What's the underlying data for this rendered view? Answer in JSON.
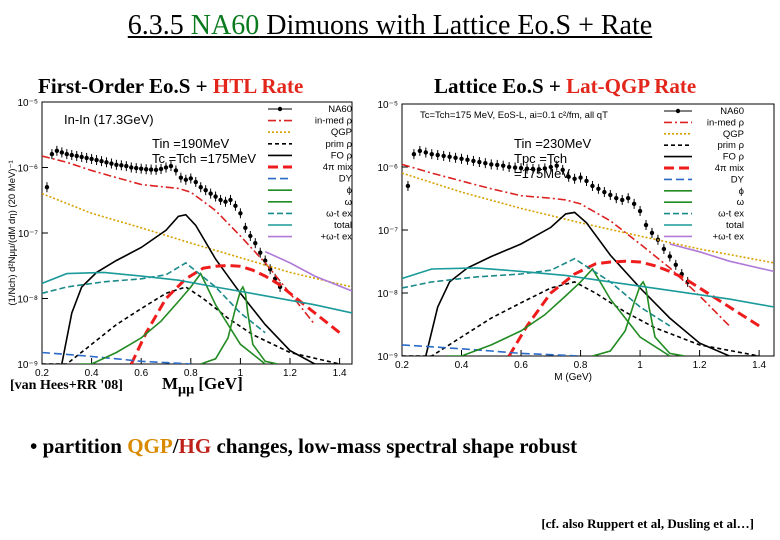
{
  "slide": {
    "title_pre": "6.3.5 ",
    "title_accent": "NA60",
    "title_post": " Dimuons with Lattice Eo.S + Rate",
    "left_subtitle_pre": "First-Order Eo.S + ",
    "left_subtitle_red": "HTL Rate",
    "right_subtitle_pre": "Lattice Eo.S + ",
    "right_subtitle_red": "Lat-QGP Rate",
    "reference": "[van Hees+RR '08]",
    "xaxis_label": "M",
    "xaxis_sub": "μμ",
    "xaxis_unit": " [GeV]",
    "bullet_pre": "• partition ",
    "bullet_qgp": "QGP",
    "bullet_sep": "/",
    "bullet_hg": "HG",
    "bullet_post": " changes,  low-mass spectral shape robust",
    "citation": "[cf. also Ruppert et al, Dusling et al…]"
  },
  "chart_data": [
    {
      "type": "line",
      "panel": "left",
      "title": "In-In (17.3GeV)",
      "ylabel": "(1/Nch) d²Nμμ/(dM dη) (20 MeV)⁻¹",
      "xlabel": "",
      "xlim": [
        0.2,
        1.45
      ],
      "ylim": [
        1e-09,
        1e-05
      ],
      "yscale": "log",
      "xticks": [
        "0.2",
        "0.4",
        "0.6",
        "0.8",
        "1",
        "1.2",
        "1.4"
      ],
      "yticks": [
        "10⁻⁵",
        "10⁻⁶",
        "10⁻⁷",
        "10⁻⁸",
        "10⁻⁹"
      ],
      "annotations": [
        "Tin =190MeV",
        "Tc =Tch =175MeV"
      ],
      "legend": [
        "NA60",
        "in-med ρ",
        "QGP",
        "prim ρ",
        "FO ρ",
        "4π mix",
        "DY",
        "ϕ",
        "ω",
        "ω-t ex",
        "total",
        "+ω-t ex"
      ],
      "series": [
        {
          "name": "NA60",
          "color": "#000000",
          "x": [
            0.22,
            0.24,
            0.26,
            0.28,
            0.3,
            0.32,
            0.34,
            0.36,
            0.38,
            0.4,
            0.42,
            0.44,
            0.46,
            0.48,
            0.5,
            0.52,
            0.54,
            0.56,
            0.58,
            0.6,
            0.62,
            0.64,
            0.66,
            0.68,
            0.7,
            0.72,
            0.74,
            0.76,
            0.78,
            0.8,
            0.82,
            0.84,
            0.86,
            0.88,
            0.9,
            0.92,
            0.94,
            0.96,
            0.98,
            1.0,
            1.02,
            1.04,
            1.06,
            1.08,
            1.1,
            1.12,
            1.14,
            1.16
          ],
          "y": [
            5e-07,
            1.6e-06,
            1.8e-06,
            1.7e-06,
            1.6e-06,
            1.55e-06,
            1.5e-06,
            1.45e-06,
            1.4e-06,
            1.35e-06,
            1.3e-06,
            1.25e-06,
            1.2e-06,
            1.15e-06,
            1.1e-06,
            1.08e-06,
            1.05e-06,
            1e-06,
            9.8e-07,
            9.6e-07,
            9.4e-07,
            9.3e-07,
            9.2e-07,
            9.5e-07,
            1e-06,
            1.05e-06,
            9e-07,
            7e-07,
            6.5e-07,
            6.8e-07,
            6e-07,
            5e-07,
            4.5e-07,
            4e-07,
            3.6e-07,
            3.2e-07,
            3e-07,
            3.2e-07,
            2.6e-07,
            2e-07,
            1.2e-07,
            9e-08,
            7e-08,
            5e-08,
            3.8e-08,
            2.8e-08,
            2e-08,
            1.5e-08
          ]
        },
        {
          "name": "in-med ρ",
          "color": "#dd2222",
          "dash": "8 3 2 3",
          "x": [
            0.2,
            0.3,
            0.4,
            0.5,
            0.6,
            0.7,
            0.75,
            0.8,
            0.9,
            1.0,
            1.1,
            1.2,
            1.3
          ],
          "y": [
            1.5e-06,
            1.2e-06,
            9e-07,
            7e-07,
            5.5e-07,
            5e-07,
            4.8e-07,
            4.2e-07,
            2.2e-07,
            9e-08,
            3.5e-08,
            1.2e-08,
            4e-09
          ]
        },
        {
          "name": "QGP",
          "color": "#d8a000",
          "dash": "2 2",
          "x": [
            0.2,
            0.4,
            0.6,
            0.8,
            1.0,
            1.2,
            1.45
          ],
          "y": [
            4e-07,
            2e-07,
            1.2e-07,
            7e-08,
            4.2e-08,
            2.5e-08,
            1.5e-08
          ]
        },
        {
          "name": "prim ρ",
          "color": "#000000",
          "dash": "4 3",
          "x": [
            0.2,
            0.3,
            0.4,
            0.5,
            0.6,
            0.7,
            0.78,
            0.85,
            0.95,
            1.05,
            1.2,
            1.4
          ],
          "y": [
            1e-09,
            1e-09,
            2e-09,
            4e-09,
            7e-09,
            1.2e-08,
            1.5e-08,
            1e-08,
            5e-09,
            2.8e-09,
            1.5e-09,
            1e-09
          ]
        },
        {
          "name": "FO ρ",
          "color": "#000000",
          "x": [
            0.28,
            0.32,
            0.36,
            0.42,
            0.5,
            0.6,
            0.7,
            0.75,
            0.78,
            0.82,
            0.9,
            1.0,
            1.1,
            1.2,
            1.3,
            1.4
          ],
          "y": [
            1e-09,
            6e-09,
            1.5e-08,
            2.5e-08,
            3.8e-08,
            6e-08,
            1.1e-07,
            1.8e-07,
            1.9e-07,
            1.3e-07,
            4e-08,
            1.2e-08,
            4e-09,
            1.6e-09,
            1e-09,
            1e-09
          ]
        },
        {
          "name": "4π mix",
          "color": "#ee1c1c",
          "dash": "10 5",
          "width": 3,
          "x": [
            0.56,
            0.62,
            0.7,
            0.78,
            0.85,
            0.9,
            0.95,
            1.0,
            1.05,
            1.1,
            1.15,
            1.2,
            1.3,
            1.4
          ],
          "y": [
            1e-09,
            3e-09,
            1e-08,
            2e-08,
            2.9e-08,
            3.1e-08,
            3.2e-08,
            3.1e-08,
            2.7e-08,
            2.2e-08,
            1.7e-08,
            1.2e-08,
            6e-09,
            3e-09
          ]
        },
        {
          "name": "DY",
          "color": "#2b6bc8",
          "dash": "8 4",
          "x": [
            0.2,
            0.3,
            0.4,
            0.5,
            0.6,
            0.7,
            0.8
          ],
          "y": [
            1.5e-09,
            1.4e-09,
            1.3e-09,
            1.2e-09,
            1.1e-09,
            1.05e-09,
            1e-09
          ]
        },
        {
          "name": "ϕ",
          "color": "#228b22",
          "x": [
            0.84,
            0.9,
            0.95,
            0.98,
            1.0,
            1.01,
            1.02,
            1.03,
            1.05,
            1.1,
            1.15
          ],
          "y": [
            1e-09,
            1.2e-09,
            2.5e-09,
            7e-09,
            1.3e-08,
            1.5e-08,
            1.2e-08,
            6e-09,
            2e-09,
            1.1e-09,
            1e-09
          ]
        },
        {
          "name": "ω",
          "color": "#228b22",
          "x": [
            0.35,
            0.4,
            0.5,
            0.6,
            0.68,
            0.75,
            0.8,
            0.84,
            0.9,
            1.0,
            1.1
          ],
          "y": [
            1e-09,
            1e-09,
            1.5e-09,
            2.5e-09,
            4.5e-09,
            9e-09,
            1.5e-08,
            2.4e-08,
            8e-09,
            2e-09,
            1e-09
          ]
        },
        {
          "name": "ω-t ex",
          "color": "#1a8a8a",
          "dash": "6 3",
          "x": [
            0.2,
            0.3,
            0.45,
            0.6,
            0.7,
            0.78,
            0.9,
            1.0,
            1.1
          ],
          "y": [
            1.2e-08,
            1.5e-08,
            1.8e-08,
            2e-08,
            2.3e-08,
            3.5e-08,
            1.5e-08,
            6e-09,
            3e-09
          ]
        },
        {
          "name": "total",
          "color": "#1a9a9a",
          "x": [
            0.2,
            0.3,
            0.45,
            0.6,
            0.75,
            0.9,
            1.1,
            1.3,
            1.45
          ],
          "y": [
            1.7e-08,
            2.4e-08,
            2.5e-08,
            2.2e-08,
            1.9e-08,
            1.5e-08,
            1.1e-08,
            8e-09,
            6e-09
          ]
        },
        {
          "name": "+ω-t ex",
          "color": "#b07ad8",
          "x": [
            1.1,
            1.2,
            1.3,
            1.45
          ],
          "y": [
            5.2e-08,
            3.5e-08,
            2.2e-08,
            1.3e-08
          ]
        }
      ]
    },
    {
      "type": "line",
      "panel": "right",
      "title": "Tc=Tch=175 MeV, EoS-L, ai=0.1 c²/fm, all qT",
      "xlabel": "M (GeV)",
      "xlim": [
        0.2,
        1.45
      ],
      "ylim": [
        1e-09,
        1e-05
      ],
      "yscale": "log",
      "xticks": [
        "0.2",
        "0.4",
        "0.6",
        "0.8",
        "1",
        "1.2",
        "1.4"
      ],
      "yticks": [
        "10⁻⁵",
        "10⁻⁶",
        "10⁻⁷",
        "10⁻⁸",
        "10⁻⁹"
      ],
      "annotations": [
        "Tin =230MeV",
        "Tpc =Tch",
        "=175MeV"
      ],
      "legend": [
        "NA60",
        "in-med ρ",
        "QGP",
        "prim ρ",
        "FO ρ",
        "4π mix",
        "DY",
        "ϕ",
        "ω",
        "ω-t ex",
        "total",
        "+ω-t ex"
      ],
      "series": [
        {
          "name": "NA60",
          "color": "#000000",
          "x": [
            0.22,
            0.24,
            0.26,
            0.28,
            0.3,
            0.32,
            0.34,
            0.36,
            0.38,
            0.4,
            0.42,
            0.44,
            0.46,
            0.48,
            0.5,
            0.52,
            0.54,
            0.56,
            0.58,
            0.6,
            0.62,
            0.64,
            0.66,
            0.68,
            0.7,
            0.72,
            0.74,
            0.76,
            0.78,
            0.8,
            0.82,
            0.84,
            0.86,
            0.88,
            0.9,
            0.92,
            0.94,
            0.96,
            0.98,
            1.0,
            1.02,
            1.04,
            1.06,
            1.08,
            1.1,
            1.12,
            1.14,
            1.16
          ],
          "y": [
            5e-07,
            1.6e-06,
            1.8e-06,
            1.7e-06,
            1.6e-06,
            1.55e-06,
            1.5e-06,
            1.45e-06,
            1.4e-06,
            1.35e-06,
            1.3e-06,
            1.25e-06,
            1.2e-06,
            1.15e-06,
            1.1e-06,
            1.08e-06,
            1.05e-06,
            1e-06,
            9.8e-07,
            9.6e-07,
            9.4e-07,
            9.3e-07,
            9.2e-07,
            9.5e-07,
            1e-06,
            1.05e-06,
            9e-07,
            7e-07,
            6.5e-07,
            6.8e-07,
            6e-07,
            5e-07,
            4.5e-07,
            4e-07,
            3.6e-07,
            3.2e-07,
            3e-07,
            3.2e-07,
            2.6e-07,
            2e-07,
            1.2e-07,
            9e-08,
            7e-08,
            5e-08,
            3.8e-08,
            2.8e-08,
            2e-08,
            1.5e-08
          ]
        },
        {
          "name": "in-med ρ",
          "color": "#dd2222",
          "dash": "8 3 2 3",
          "x": [
            0.2,
            0.3,
            0.4,
            0.5,
            0.6,
            0.7,
            0.75,
            0.8,
            0.9,
            1.0,
            1.1,
            1.2,
            1.3
          ],
          "y": [
            1.1e-06,
            8e-07,
            6e-07,
            4.5e-07,
            3.5e-07,
            3.2e-07,
            3e-07,
            2.6e-07,
            1.4e-07,
            6e-08,
            2.5e-08,
            9e-09,
            3e-09
          ]
        },
        {
          "name": "QGP",
          "color": "#d8a000",
          "dash": "2 2",
          "x": [
            0.2,
            0.4,
            0.6,
            0.8,
            1.0,
            1.2,
            1.45
          ],
          "y": [
            8e-07,
            4e-07,
            2.2e-07,
            1.3e-07,
            8e-08,
            5e-08,
            3e-08
          ]
        },
        {
          "name": "prim ρ",
          "color": "#000000",
          "dash": "4 3",
          "x": [
            0.2,
            0.3,
            0.4,
            0.5,
            0.6,
            0.7,
            0.78,
            0.85,
            0.95,
            1.05,
            1.2,
            1.4
          ],
          "y": [
            1e-09,
            1e-09,
            2e-09,
            4e-09,
            7e-09,
            1.2e-08,
            1.5e-08,
            1e-08,
            5e-09,
            2.8e-09,
            1.5e-09,
            1e-09
          ]
        },
        {
          "name": "FO ρ",
          "color": "#000000",
          "x": [
            0.28,
            0.32,
            0.36,
            0.42,
            0.5,
            0.6,
            0.7,
            0.75,
            0.78,
            0.82,
            0.9,
            1.0,
            1.1,
            1.2,
            1.3,
            1.4
          ],
          "y": [
            1e-09,
            6e-09,
            1.5e-08,
            2.5e-08,
            3.8e-08,
            6e-08,
            1.1e-07,
            1.8e-07,
            1.9e-07,
            1.3e-07,
            4e-08,
            1.2e-08,
            4e-09,
            1.6e-09,
            1e-09,
            1e-09
          ]
        },
        {
          "name": "4π mix",
          "color": "#ee1c1c",
          "dash": "10 5",
          "width": 3,
          "x": [
            0.56,
            0.62,
            0.7,
            0.78,
            0.85,
            0.9,
            0.95,
            1.0,
            1.05,
            1.1,
            1.15,
            1.2,
            1.3,
            1.4
          ],
          "y": [
            1e-09,
            3e-09,
            1e-08,
            2e-08,
            2.9e-08,
            3.1e-08,
            3.2e-08,
            3.1e-08,
            2.7e-08,
            2.2e-08,
            1.7e-08,
            1.2e-08,
            6e-09,
            3e-09
          ]
        },
        {
          "name": "DY",
          "color": "#2b6bc8",
          "dash": "8 4",
          "x": [
            0.2,
            0.3,
            0.4,
            0.5,
            0.6,
            0.7,
            0.8
          ],
          "y": [
            1.5e-09,
            1.4e-09,
            1.3e-09,
            1.2e-09,
            1.1e-09,
            1.05e-09,
            1e-09
          ]
        },
        {
          "name": "ϕ",
          "color": "#228b22",
          "x": [
            0.84,
            0.9,
            0.95,
            0.98,
            1.0,
            1.01,
            1.02,
            1.03,
            1.05,
            1.1,
            1.15
          ],
          "y": [
            1e-09,
            1.2e-09,
            2.5e-09,
            7e-09,
            1.3e-08,
            1.5e-08,
            1.2e-08,
            6e-09,
            2e-09,
            1.1e-09,
            1e-09
          ]
        },
        {
          "name": "ω",
          "color": "#228b22",
          "x": [
            0.35,
            0.4,
            0.5,
            0.6,
            0.68,
            0.75,
            0.8,
            0.84,
            0.9,
            1.0,
            1.1
          ],
          "y": [
            1e-09,
            1e-09,
            1.5e-09,
            2.5e-09,
            4.5e-09,
            9e-09,
            1.5e-08,
            2.4e-08,
            8e-09,
            2e-09,
            1e-09
          ]
        },
        {
          "name": "ω-t ex",
          "color": "#1a8a8a",
          "dash": "6 3",
          "x": [
            0.2,
            0.3,
            0.45,
            0.6,
            0.7,
            0.78,
            0.9,
            1.0,
            1.1
          ],
          "y": [
            1.2e-08,
            1.5e-08,
            1.8e-08,
            2e-08,
            2.3e-08,
            3.5e-08,
            1.5e-08,
            6e-09,
            3e-09
          ]
        },
        {
          "name": "total",
          "color": "#1a9a9a",
          "x": [
            0.2,
            0.3,
            0.45,
            0.6,
            0.75,
            0.9,
            1.1,
            1.3,
            1.45
          ],
          "y": [
            1.7e-08,
            2.4e-08,
            2.5e-08,
            2.2e-08,
            1.9e-08,
            1.5e-08,
            1.1e-08,
            8e-09,
            6e-09
          ]
        },
        {
          "name": "+ω-t ex",
          "color": "#b07ad8",
          "x": [
            1.1,
            1.2,
            1.3,
            1.45
          ],
          "y": [
            6e-08,
            4.5e-08,
            3.2e-08,
            2.2e-08
          ]
        }
      ]
    }
  ]
}
